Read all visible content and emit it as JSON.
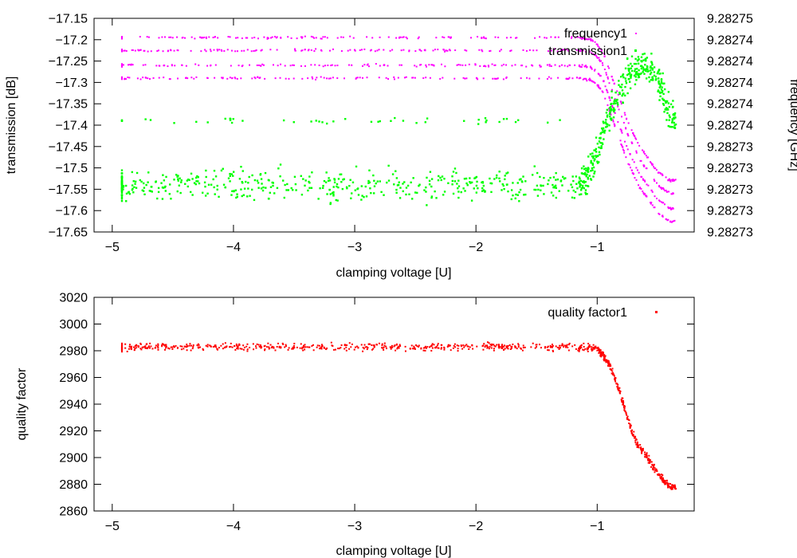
{
  "chart_data": [
    {
      "type": "scatter",
      "title": "",
      "xlabel": "clamping voltage [U]",
      "ylabel": "transmission [dB]",
      "y2label": "frequency [GHz]",
      "xlim": [
        -5.15,
        -0.2
      ],
      "ylim": [
        -17.65,
        -17.15
      ],
      "xticks": [
        -5,
        -4,
        -3,
        -2,
        -1
      ],
      "xtick_labels": [
        "−5",
        "−4",
        "−3",
        "−2",
        "−1"
      ],
      "yticks": [
        -17.15,
        -17.2,
        -17.25,
        -17.3,
        -17.35,
        -17.4,
        -17.45,
        -17.5,
        -17.55,
        -17.6,
        -17.65
      ],
      "ytick_labels": [
        "−17.15",
        "−17.2",
        "−17.25",
        "−17.3",
        "−17.35",
        "−17.4",
        "−17.45",
        "−17.5",
        "−17.55",
        "−17.6",
        "−17.65"
      ],
      "y2tick_labels": [
        "9.28275",
        "9.28274",
        "9.28274",
        "9.28274",
        "9.28274",
        "9.28274",
        "9.28273",
        "9.28273",
        "9.28273",
        "9.28273",
        "9.28273"
      ],
      "legend_position": "top-right",
      "series": [
        {
          "name": "frequency1",
          "color": "#ff00ff",
          "axis": "right",
          "marker": "dot",
          "x": [
            -4.92,
            -4.75,
            -4.5,
            -4.25,
            -4.0,
            -3.75,
            -3.5,
            -3.25,
            -3.0,
            -2.75,
            -2.5,
            -2.25,
            -2.0,
            -1.75,
            -1.5,
            -1.25,
            -1.15,
            -1.05,
            -1.0,
            -0.95,
            -0.9,
            -0.85,
            -0.8,
            -0.75,
            -0.7,
            -0.65,
            -0.6,
            -0.55,
            -0.5,
            -0.45,
            -0.4
          ],
          "y": [
            -17.245,
            -17.245,
            -17.245,
            -17.245,
            -17.245,
            -17.245,
            -17.245,
            -17.245,
            -17.245,
            -17.245,
            -17.245,
            -17.245,
            -17.245,
            -17.245,
            -17.245,
            -17.245,
            -17.245,
            -17.25,
            -17.26,
            -17.28,
            -17.32,
            -17.36,
            -17.4,
            -17.44,
            -17.47,
            -17.5,
            -17.52,
            -17.54,
            -17.56,
            -17.57,
            -17.58
          ]
        },
        {
          "name": "transmission1",
          "color": "#00ff00",
          "axis": "left",
          "marker": "square",
          "x": [
            -4.92,
            -4.75,
            -4.5,
            -4.25,
            -4.0,
            -3.75,
            -3.5,
            -3.25,
            -3.0,
            -2.75,
            -2.5,
            -2.25,
            -2.0,
            -1.75,
            -1.5,
            -1.25,
            -1.15,
            -1.1,
            -1.05,
            -1.0,
            -0.95,
            -0.9,
            -0.85,
            -0.8,
            -0.75,
            -0.7,
            -0.65,
            -0.6,
            -0.55,
            -0.5,
            -0.45,
            -0.4
          ],
          "y": [
            -17.54,
            -17.54,
            -17.54,
            -17.54,
            -17.54,
            -17.54,
            -17.54,
            -17.54,
            -17.54,
            -17.54,
            -17.54,
            -17.54,
            -17.54,
            -17.54,
            -17.54,
            -17.54,
            -17.54,
            -17.53,
            -17.5,
            -17.46,
            -17.42,
            -17.38,
            -17.34,
            -17.31,
            -17.29,
            -17.27,
            -17.26,
            -17.26,
            -17.27,
            -17.29,
            -17.33,
            -17.38
          ]
        }
      ]
    },
    {
      "type": "scatter",
      "title": "",
      "xlabel": "clamping voltage [U]",
      "ylabel": "quality factor",
      "xlim": [
        -5.15,
        -0.2
      ],
      "ylim": [
        2860,
        3020
      ],
      "xticks": [
        -5,
        -4,
        -3,
        -2,
        -1
      ],
      "xtick_labels": [
        "−5",
        "−4",
        "−3",
        "−2",
        "−1"
      ],
      "yticks": [
        3020,
        3000,
        2980,
        2960,
        2940,
        2920,
        2900,
        2880,
        2860
      ],
      "ytick_labels": [
        "3020",
        "3000",
        "2980",
        "2960",
        "2940",
        "2920",
        "2900",
        "2880",
        "2860"
      ],
      "legend_position": "top-right",
      "series": [
        {
          "name": "quality factor1",
          "color": "#ff0000",
          "marker": "dot",
          "x": [
            -4.92,
            -4.75,
            -4.5,
            -4.25,
            -4.0,
            -3.75,
            -3.5,
            -3.25,
            -3.0,
            -2.75,
            -2.5,
            -2.25,
            -2.0,
            -1.75,
            -1.5,
            -1.25,
            -1.15,
            -1.1,
            -1.05,
            -1.0,
            -0.95,
            -0.9,
            -0.85,
            -0.8,
            -0.75,
            -0.7,
            -0.65,
            -0.6,
            -0.55,
            -0.5,
            -0.45,
            -0.4
          ],
          "y": [
            2982,
            2983,
            2983,
            2983,
            2983,
            2983,
            2983,
            2983,
            2983,
            2983,
            2983,
            2983,
            2983,
            2983,
            2983,
            2983,
            2982,
            2982,
            2982,
            2981,
            2977,
            2970,
            2958,
            2945,
            2930,
            2916,
            2908,
            2902,
            2895,
            2888,
            2883,
            2878
          ]
        }
      ]
    }
  ]
}
